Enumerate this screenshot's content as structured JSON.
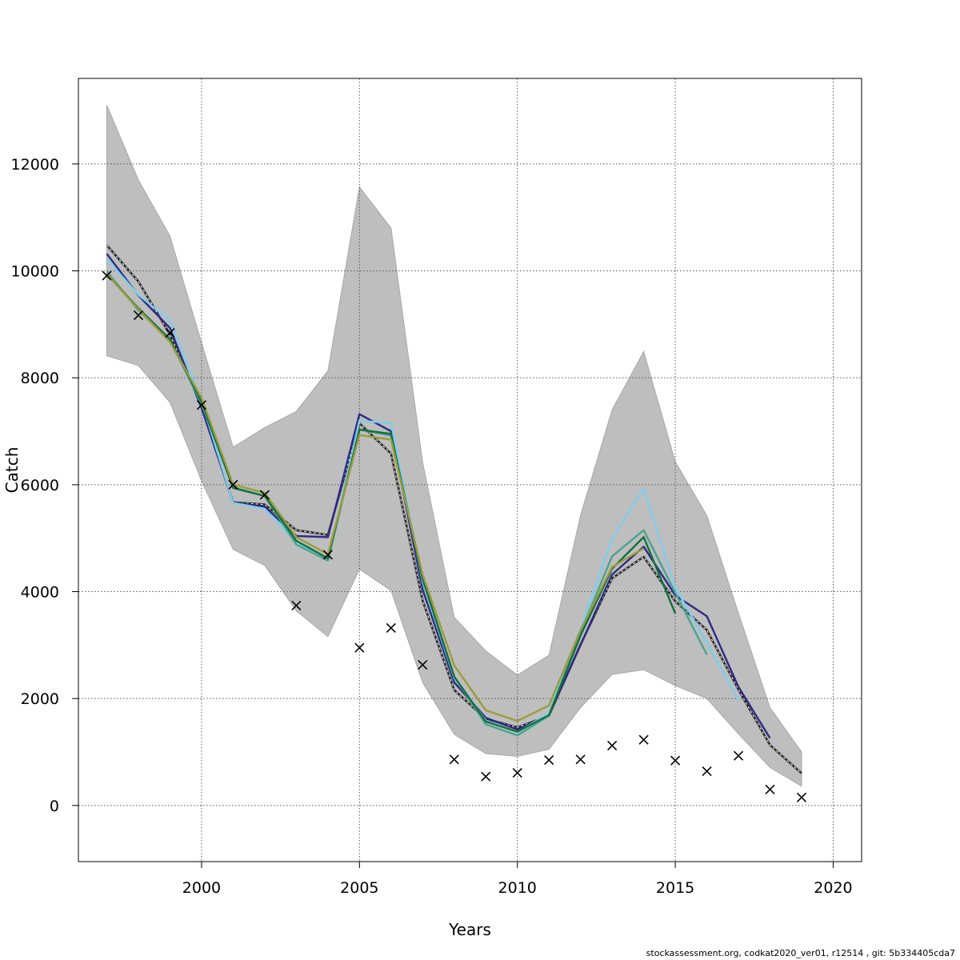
{
  "chart_data": {
    "type": "line",
    "title": "",
    "xlabel": "Years",
    "ylabel": "Catch",
    "xlim": [
      1996.1,
      2020.9
    ],
    "ylim": [
      -1050,
      13600
    ],
    "x_ticks": [
      2000,
      2005,
      2010,
      2015,
      2020
    ],
    "y_ticks": [
      0,
      2000,
      4000,
      6000,
      8000,
      10000,
      12000
    ],
    "grid": true,
    "legend": "none",
    "confidence_band": {
      "color": "#bebebe",
      "x": [
        1997,
        1998,
        1999,
        2000,
        2001,
        2002,
        2003,
        2004,
        2005,
        2006,
        2007,
        2008,
        2009,
        2010,
        2011,
        2012,
        2013,
        2014,
        2015,
        2016,
        2017,
        2018,
        2019
      ],
      "upper": [
        13100,
        11700,
        10650,
        8650,
        6700,
        7070,
        7370,
        8130,
        11570,
        10800,
        6420,
        3520,
        2890,
        2440,
        2810,
        5430,
        7400,
        8490,
        6430,
        5420,
        3600,
        1830,
        1000
      ],
      "lower": [
        8410,
        8230,
        7540,
        6070,
        4790,
        4490,
        3640,
        3160,
        4420,
        4020,
        2300,
        1330,
        970,
        920,
        1050,
        1830,
        2450,
        2540,
        2240,
        2000,
        1340,
        710,
        360
      ]
    },
    "series": [
      {
        "color": "#262626",
        "dashed": true,
        "x": [
          1997,
          1998,
          1999,
          2000,
          2001,
          2002,
          2003,
          2004,
          2005,
          2006,
          2007,
          2008,
          2009,
          2010,
          2011,
          2012,
          2013,
          2014,
          2015,
          2016,
          2017,
          2018,
          2019
        ],
        "values": [
          10480,
          9800,
          8810,
          7480,
          5670,
          5630,
          5150,
          5060,
          7150,
          6580,
          3830,
          2160,
          1620,
          1460,
          1680,
          3010,
          4250,
          4650,
          3820,
          3280,
          2170,
          1130,
          600
        ]
      },
      {
        "color": "#2e2a86",
        "dashed": false,
        "x": [
          1997,
          1998,
          1999,
          2000,
          2001,
          2002,
          2003,
          2004,
          2005,
          2006,
          2007,
          2008,
          2009,
          2010,
          2011,
          2012,
          2013,
          2014,
          2015,
          2016,
          2017,
          2018
        ],
        "values": [
          10320,
          9540,
          8930,
          7430,
          5670,
          5590,
          5040,
          5020,
          7320,
          7000,
          4040,
          2300,
          1640,
          1420,
          1700,
          3000,
          4320,
          4840,
          3930,
          3540,
          2220,
          1260
        ]
      },
      {
        "color": "#7fcdee",
        "dashed": false,
        "x": [
          1997,
          1998,
          1999,
          2000,
          2001,
          2002,
          2003,
          2004,
          2005,
          2006,
          2007,
          2008,
          2009,
          2010,
          2011,
          2012,
          2013,
          2014,
          2015,
          2016,
          2017
        ],
        "values": [
          10220,
          9550,
          9070,
          7560,
          5660,
          5550,
          4920,
          4590,
          7200,
          7150,
          4180,
          2380,
          1590,
          1370,
          1730,
          3310,
          4990,
          5920,
          4080,
          3040,
          1980
        ]
      },
      {
        "color": "#4aa392",
        "dashed": false,
        "x": [
          1997,
          1998,
          1999,
          2000,
          2001,
          2002,
          2003,
          2004,
          2005,
          2006,
          2007,
          2008,
          2009,
          2010,
          2011,
          2012,
          2013,
          2014,
          2015,
          2016
        ],
        "values": [
          9990,
          9260,
          8700,
          7510,
          5950,
          5790,
          4880,
          4580,
          7030,
          6920,
          4230,
          2410,
          1520,
          1310,
          1680,
          3240,
          4660,
          5150,
          3980,
          2820
        ]
      },
      {
        "color": "#11713e",
        "dashed": false,
        "x": [
          1997,
          1998,
          1999,
          2000,
          2001,
          2002,
          2003,
          2004,
          2005,
          2006,
          2007,
          2008,
          2009,
          2010,
          2011,
          2012,
          2013,
          2014,
          2015
        ],
        "values": [
          9940,
          9300,
          8720,
          7550,
          5940,
          5790,
          4950,
          4620,
          7030,
          6950,
          4240,
          2410,
          1570,
          1380,
          1690,
          3180,
          4430,
          5020,
          3590
        ]
      },
      {
        "color": "#9c9b3c",
        "dashed": false,
        "x": [
          1997,
          1998,
          1999,
          2000,
          2001,
          2002,
          2003,
          2004,
          2005,
          2006,
          2007,
          2008,
          2009,
          2010,
          2011,
          2012,
          2013,
          2014
        ],
        "values": [
          9940,
          9280,
          8670,
          7620,
          6000,
          5850,
          5020,
          4700,
          6930,
          6840,
          4320,
          2620,
          1780,
          1580,
          1870,
          3280,
          4460,
          4810
        ]
      }
    ],
    "observed": {
      "marker": "x",
      "color": "#000000",
      "x": [
        1997,
        1998,
        1999,
        2000,
        2001,
        2002,
        2003,
        2004,
        2005,
        2006,
        2007,
        2008,
        2009,
        2010,
        2011,
        2012,
        2013,
        2014,
        2015,
        2016,
        2017,
        2018,
        2019
      ],
      "values": [
        9910,
        9170,
        8840,
        7490,
        6000,
        5810,
        3740,
        4690,
        2950,
        3320,
        2630,
        860,
        540,
        610,
        850,
        860,
        1120,
        1230,
        840,
        640,
        930,
        300,
        150
      ]
    }
  },
  "footer_text": "stockassessment.org, codkat2020_ver01, r12514 , git: 5b334405cda7"
}
